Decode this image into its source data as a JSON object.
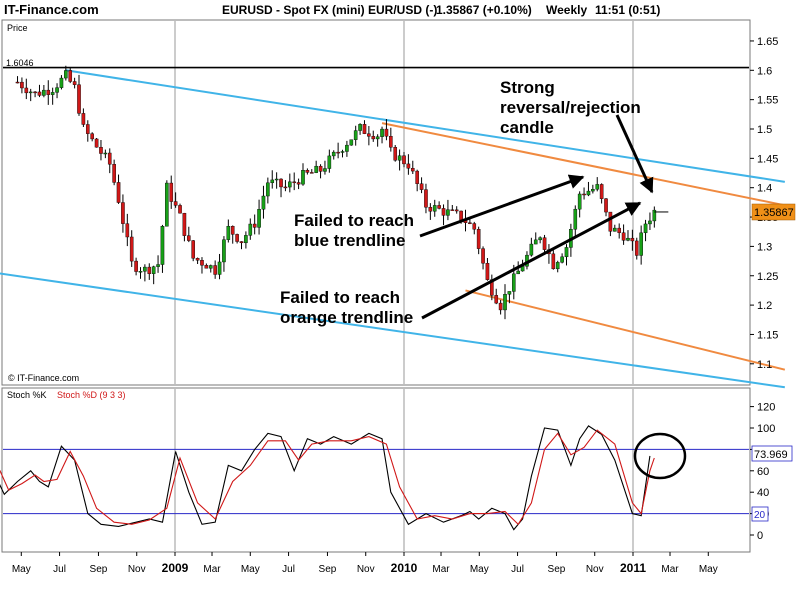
{
  "header": {
    "site": "IT-Finance.com",
    "instrument": "EURUSD - Spot FX (mini) EUR/USD (-)",
    "last": "1.35867 (+0.10%)",
    "interval": "Weekly",
    "time": "11:51 (0:51)"
  },
  "price_panel": {
    "label": "Price",
    "watermark": "© IT-Finance.com",
    "hline_label": "1.6046"
  },
  "stoch_panel": {
    "label_k": "Stoch %K",
    "label_d": "Stoch %D (9 3 3)",
    "k_value": "73.969",
    "d_marker": "20"
  },
  "annotations": {
    "reversal": [
      "Strong",
      "reversal/rejection",
      "candle"
    ],
    "blue_fail": [
      "Failed to reach",
      "blue trendline"
    ],
    "orange_fail": [
      "Failed to reach",
      "orange trendline"
    ]
  },
  "colors": {
    "up_candle": "#18a018",
    "down_candle": "#d01818",
    "blue_trendline": "#40b4e8",
    "orange_trendline": "#f08a40",
    "level_line": "#000000",
    "stoch_k": "#000000",
    "stoch_d": "#d01818",
    "stoch_levels": "#2828c8",
    "price_badge": "#f09018"
  },
  "chart_data": [
    {
      "type": "candlestick",
      "panel": "price",
      "x_tick_labels": [
        "May",
        "Jul",
        "Sep",
        "Nov",
        "2009",
        "Mar",
        "May",
        "Jul",
        "Sep",
        "Nov",
        "2010",
        "Mar",
        "May",
        "Jul",
        "Sep",
        "Nov",
        "2011",
        "Mar",
        "May"
      ],
      "y_tick_labels": [
        "1.65",
        "1.6",
        "1.55",
        "1.5",
        "1.45",
        "1.4",
        "1.35",
        "1.3",
        "1.25",
        "1.2",
        "1.15",
        "1.1"
      ],
      "ylim": [
        1.06,
        1.68
      ],
      "last_price": "1.35867",
      "close_path": [
        {
          "date": "2008-04-25",
          "close": 1.58
        },
        {
          "date": "2008-05-23",
          "close": 1.56
        },
        {
          "date": "2008-06-20",
          "close": 1.57
        },
        {
          "date": "2008-07-11",
          "close": 1.59
        },
        {
          "date": "2008-07-25",
          "close": 1.57
        },
        {
          "date": "2008-08-08",
          "close": 1.5
        },
        {
          "date": "2008-08-29",
          "close": 1.47
        },
        {
          "date": "2008-09-19",
          "close": 1.44
        },
        {
          "date": "2008-10-03",
          "close": 1.38
        },
        {
          "date": "2008-10-24",
          "close": 1.27
        },
        {
          "date": "2008-11-14",
          "close": 1.26
        },
        {
          "date": "2008-12-05",
          "close": 1.27
        },
        {
          "date": "2008-12-19",
          "close": 1.4
        },
        {
          "date": "2009-01-09",
          "close": 1.35
        },
        {
          "date": "2009-01-30",
          "close": 1.28
        },
        {
          "date": "2009-02-20",
          "close": 1.27
        },
        {
          "date": "2009-03-06",
          "close": 1.26
        },
        {
          "date": "2009-03-27",
          "close": 1.33
        },
        {
          "date": "2009-04-17",
          "close": 1.31
        },
        {
          "date": "2009-05-08",
          "close": 1.34
        },
        {
          "date": "2009-05-29",
          "close": 1.41
        },
        {
          "date": "2009-06-26",
          "close": 1.4
        },
        {
          "date": "2009-07-24",
          "close": 1.42
        },
        {
          "date": "2009-08-21",
          "close": 1.43
        },
        {
          "date": "2009-09-25",
          "close": 1.47
        },
        {
          "date": "2009-10-23",
          "close": 1.5
        },
        {
          "date": "2009-11-20",
          "close": 1.49
        },
        {
          "date": "2009-11-27",
          "close": 1.5
        },
        {
          "date": "2009-12-11",
          "close": 1.46
        },
        {
          "date": "2010-01-08",
          "close": 1.44
        },
        {
          "date": "2010-02-05",
          "close": 1.37
        },
        {
          "date": "2010-03-05",
          "close": 1.36
        },
        {
          "date": "2010-04-02",
          "close": 1.35
        },
        {
          "date": "2010-04-23",
          "close": 1.33
        },
        {
          "date": "2010-05-14",
          "close": 1.24
        },
        {
          "date": "2010-06-04",
          "close": 1.2
        },
        {
          "date": "2010-06-18",
          "close": 1.23
        },
        {
          "date": "2010-07-09",
          "close": 1.27
        },
        {
          "date": "2010-08-06",
          "close": 1.32
        },
        {
          "date": "2010-08-27",
          "close": 1.27
        },
        {
          "date": "2010-09-17",
          "close": 1.3
        },
        {
          "date": "2010-10-08",
          "close": 1.39
        },
        {
          "date": "2010-11-05",
          "close": 1.4
        },
        {
          "date": "2010-11-26",
          "close": 1.33
        },
        {
          "date": "2010-12-17",
          "close": 1.32
        },
        {
          "date": "2011-01-07",
          "close": 1.29
        },
        {
          "date": "2011-01-21",
          "close": 1.34
        },
        {
          "date": "2011-02-04",
          "close": 1.36
        }
      ],
      "trendlines": [
        {
          "color": "blue",
          "points": [
            {
              "date": "2008-07-11",
              "price": 1.6
            },
            {
              "date": "2011-08-31",
              "price": 1.41
            }
          ]
        },
        {
          "color": "blue",
          "points": [
            {
              "date": "2008-03-14",
              "price": 1.256
            },
            {
              "date": "2011-08-31",
              "price": 1.06
            }
          ]
        },
        {
          "color": "orange",
          "points": [
            {
              "date": "2009-11-27",
              "price": 1.51
            },
            {
              "date": "2011-08-31",
              "price": 1.37
            }
          ]
        },
        {
          "color": "orange",
          "points": [
            {
              "date": "2010-04-09",
              "price": 1.225
            },
            {
              "date": "2011-08-31",
              "price": 1.09
            }
          ]
        }
      ],
      "horizontal_line": {
        "price": 1.6046,
        "label": "1.6046"
      }
    },
    {
      "type": "line",
      "panel": "stochastic",
      "y_tick_labels": [
        "120",
        "100",
        "80",
        "60",
        "40",
        "20",
        "0"
      ],
      "ylim": [
        -10,
        130
      ],
      "levels": [
        20,
        80
      ],
      "series": [
        {
          "name": "Stoch %K",
          "points": [
            {
              "date": "2008-02-29",
              "value": 80
            },
            {
              "date": "2008-03-21",
              "value": 55
            },
            {
              "date": "2008-04-04",
              "value": 38
            },
            {
              "date": "2008-04-25",
              "value": 50
            },
            {
              "date": "2008-05-16",
              "value": 60
            },
            {
              "date": "2008-05-30",
              "value": 50
            },
            {
              "date": "2008-06-13",
              "value": 45
            },
            {
              "date": "2008-07-04",
              "value": 83
            },
            {
              "date": "2008-07-25",
              "value": 70
            },
            {
              "date": "2008-08-15",
              "value": 20
            },
            {
              "date": "2008-09-05",
              "value": 10
            },
            {
              "date": "2008-10-03",
              "value": 8
            },
            {
              "date": "2008-10-31",
              "value": 12
            },
            {
              "date": "2008-11-21",
              "value": 15
            },
            {
              "date": "2008-12-12",
              "value": 12
            },
            {
              "date": "2009-01-02",
              "value": 78
            },
            {
              "date": "2009-01-23",
              "value": 40
            },
            {
              "date": "2009-02-13",
              "value": 10
            },
            {
              "date": "2009-03-06",
              "value": 12
            },
            {
              "date": "2009-03-27",
              "value": 65
            },
            {
              "date": "2009-04-17",
              "value": 60
            },
            {
              "date": "2009-05-08",
              "value": 80
            },
            {
              "date": "2009-05-29",
              "value": 95
            },
            {
              "date": "2009-06-19",
              "value": 92
            },
            {
              "date": "2009-07-10",
              "value": 60
            },
            {
              "date": "2009-07-31",
              "value": 90
            },
            {
              "date": "2009-08-21",
              "value": 85
            },
            {
              "date": "2009-09-11",
              "value": 92
            },
            {
              "date": "2009-10-09",
              "value": 85
            },
            {
              "date": "2009-11-06",
              "value": 95
            },
            {
              "date": "2009-11-27",
              "value": 90
            },
            {
              "date": "2009-12-11",
              "value": 40
            },
            {
              "date": "2010-01-08",
              "value": 10
            },
            {
              "date": "2010-02-05",
              "value": 20
            },
            {
              "date": "2010-03-05",
              "value": 12
            },
            {
              "date": "2010-04-02",
              "value": 18
            },
            {
              "date": "2010-04-16",
              "value": 22
            },
            {
              "date": "2010-04-30",
              "value": 15
            },
            {
              "date": "2010-05-21",
              "value": 25
            },
            {
              "date": "2010-06-11",
              "value": 20
            },
            {
              "date": "2010-06-25",
              "value": 5
            },
            {
              "date": "2010-07-09",
              "value": 15
            },
            {
              "date": "2010-07-23",
              "value": 55
            },
            {
              "date": "2010-08-13",
              "value": 100
            },
            {
              "date": "2010-09-03",
              "value": 98
            },
            {
              "date": "2010-09-24",
              "value": 65
            },
            {
              "date": "2010-10-08",
              "value": 90
            },
            {
              "date": "2010-10-22",
              "value": 102
            },
            {
              "date": "2010-11-12",
              "value": 94
            },
            {
              "date": "2010-12-03",
              "value": 70
            },
            {
              "date": "2010-12-31",
              "value": 20
            },
            {
              "date": "2011-01-14",
              "value": 18
            },
            {
              "date": "2011-01-28",
              "value": 73.969
            }
          ]
        },
        {
          "name": "Stoch %D (9 3 3)",
          "points": [
            {
              "date": "2008-02-29",
              "value": 80
            },
            {
              "date": "2008-03-28",
              "value": 60
            },
            {
              "date": "2008-04-11",
              "value": 42
            },
            {
              "date": "2008-05-02",
              "value": 48
            },
            {
              "date": "2008-05-23",
              "value": 56
            },
            {
              "date": "2008-06-06",
              "value": 50
            },
            {
              "date": "2008-06-27",
              "value": 52
            },
            {
              "date": "2008-07-18",
              "value": 78
            },
            {
              "date": "2008-08-08",
              "value": 55
            },
            {
              "date": "2008-08-29",
              "value": 25
            },
            {
              "date": "2008-09-26",
              "value": 12
            },
            {
              "date": "2008-10-24",
              "value": 10
            },
            {
              "date": "2008-11-21",
              "value": 14
            },
            {
              "date": "2008-12-19",
              "value": 25
            },
            {
              "date": "2009-01-09",
              "value": 72
            },
            {
              "date": "2009-02-06",
              "value": 30
            },
            {
              "date": "2009-03-06",
              "value": 15
            },
            {
              "date": "2009-04-03",
              "value": 50
            },
            {
              "date": "2009-05-01",
              "value": 65
            },
            {
              "date": "2009-05-29",
              "value": 88
            },
            {
              "date": "2009-06-26",
              "value": 88
            },
            {
              "date": "2009-07-17",
              "value": 70
            },
            {
              "date": "2009-08-07",
              "value": 85
            },
            {
              "date": "2009-09-04",
              "value": 88
            },
            {
              "date": "2009-10-09",
              "value": 88
            },
            {
              "date": "2009-11-06",
              "value": 92
            },
            {
              "date": "2009-12-04",
              "value": 85
            },
            {
              "date": "2009-12-25",
              "value": 45
            },
            {
              "date": "2010-01-22",
              "value": 15
            },
            {
              "date": "2010-02-19",
              "value": 18
            },
            {
              "date": "2010-03-19",
              "value": 15
            },
            {
              "date": "2010-04-16",
              "value": 20
            },
            {
              "date": "2010-05-14",
              "value": 20
            },
            {
              "date": "2010-06-11",
              "value": 22
            },
            {
              "date": "2010-07-02",
              "value": 10
            },
            {
              "date": "2010-07-23",
              "value": 30
            },
            {
              "date": "2010-08-13",
              "value": 80
            },
            {
              "date": "2010-09-03",
              "value": 95
            },
            {
              "date": "2010-09-24",
              "value": 75
            },
            {
              "date": "2010-10-15",
              "value": 82
            },
            {
              "date": "2010-11-05",
              "value": 98
            },
            {
              "date": "2010-12-03",
              "value": 85
            },
            {
              "date": "2010-12-31",
              "value": 30
            },
            {
              "date": "2011-01-14",
              "value": 20
            },
            {
              "date": "2011-01-28",
              "value": 60
            },
            {
              "date": "2011-02-04",
              "value": 72
            }
          ]
        }
      ]
    }
  ]
}
